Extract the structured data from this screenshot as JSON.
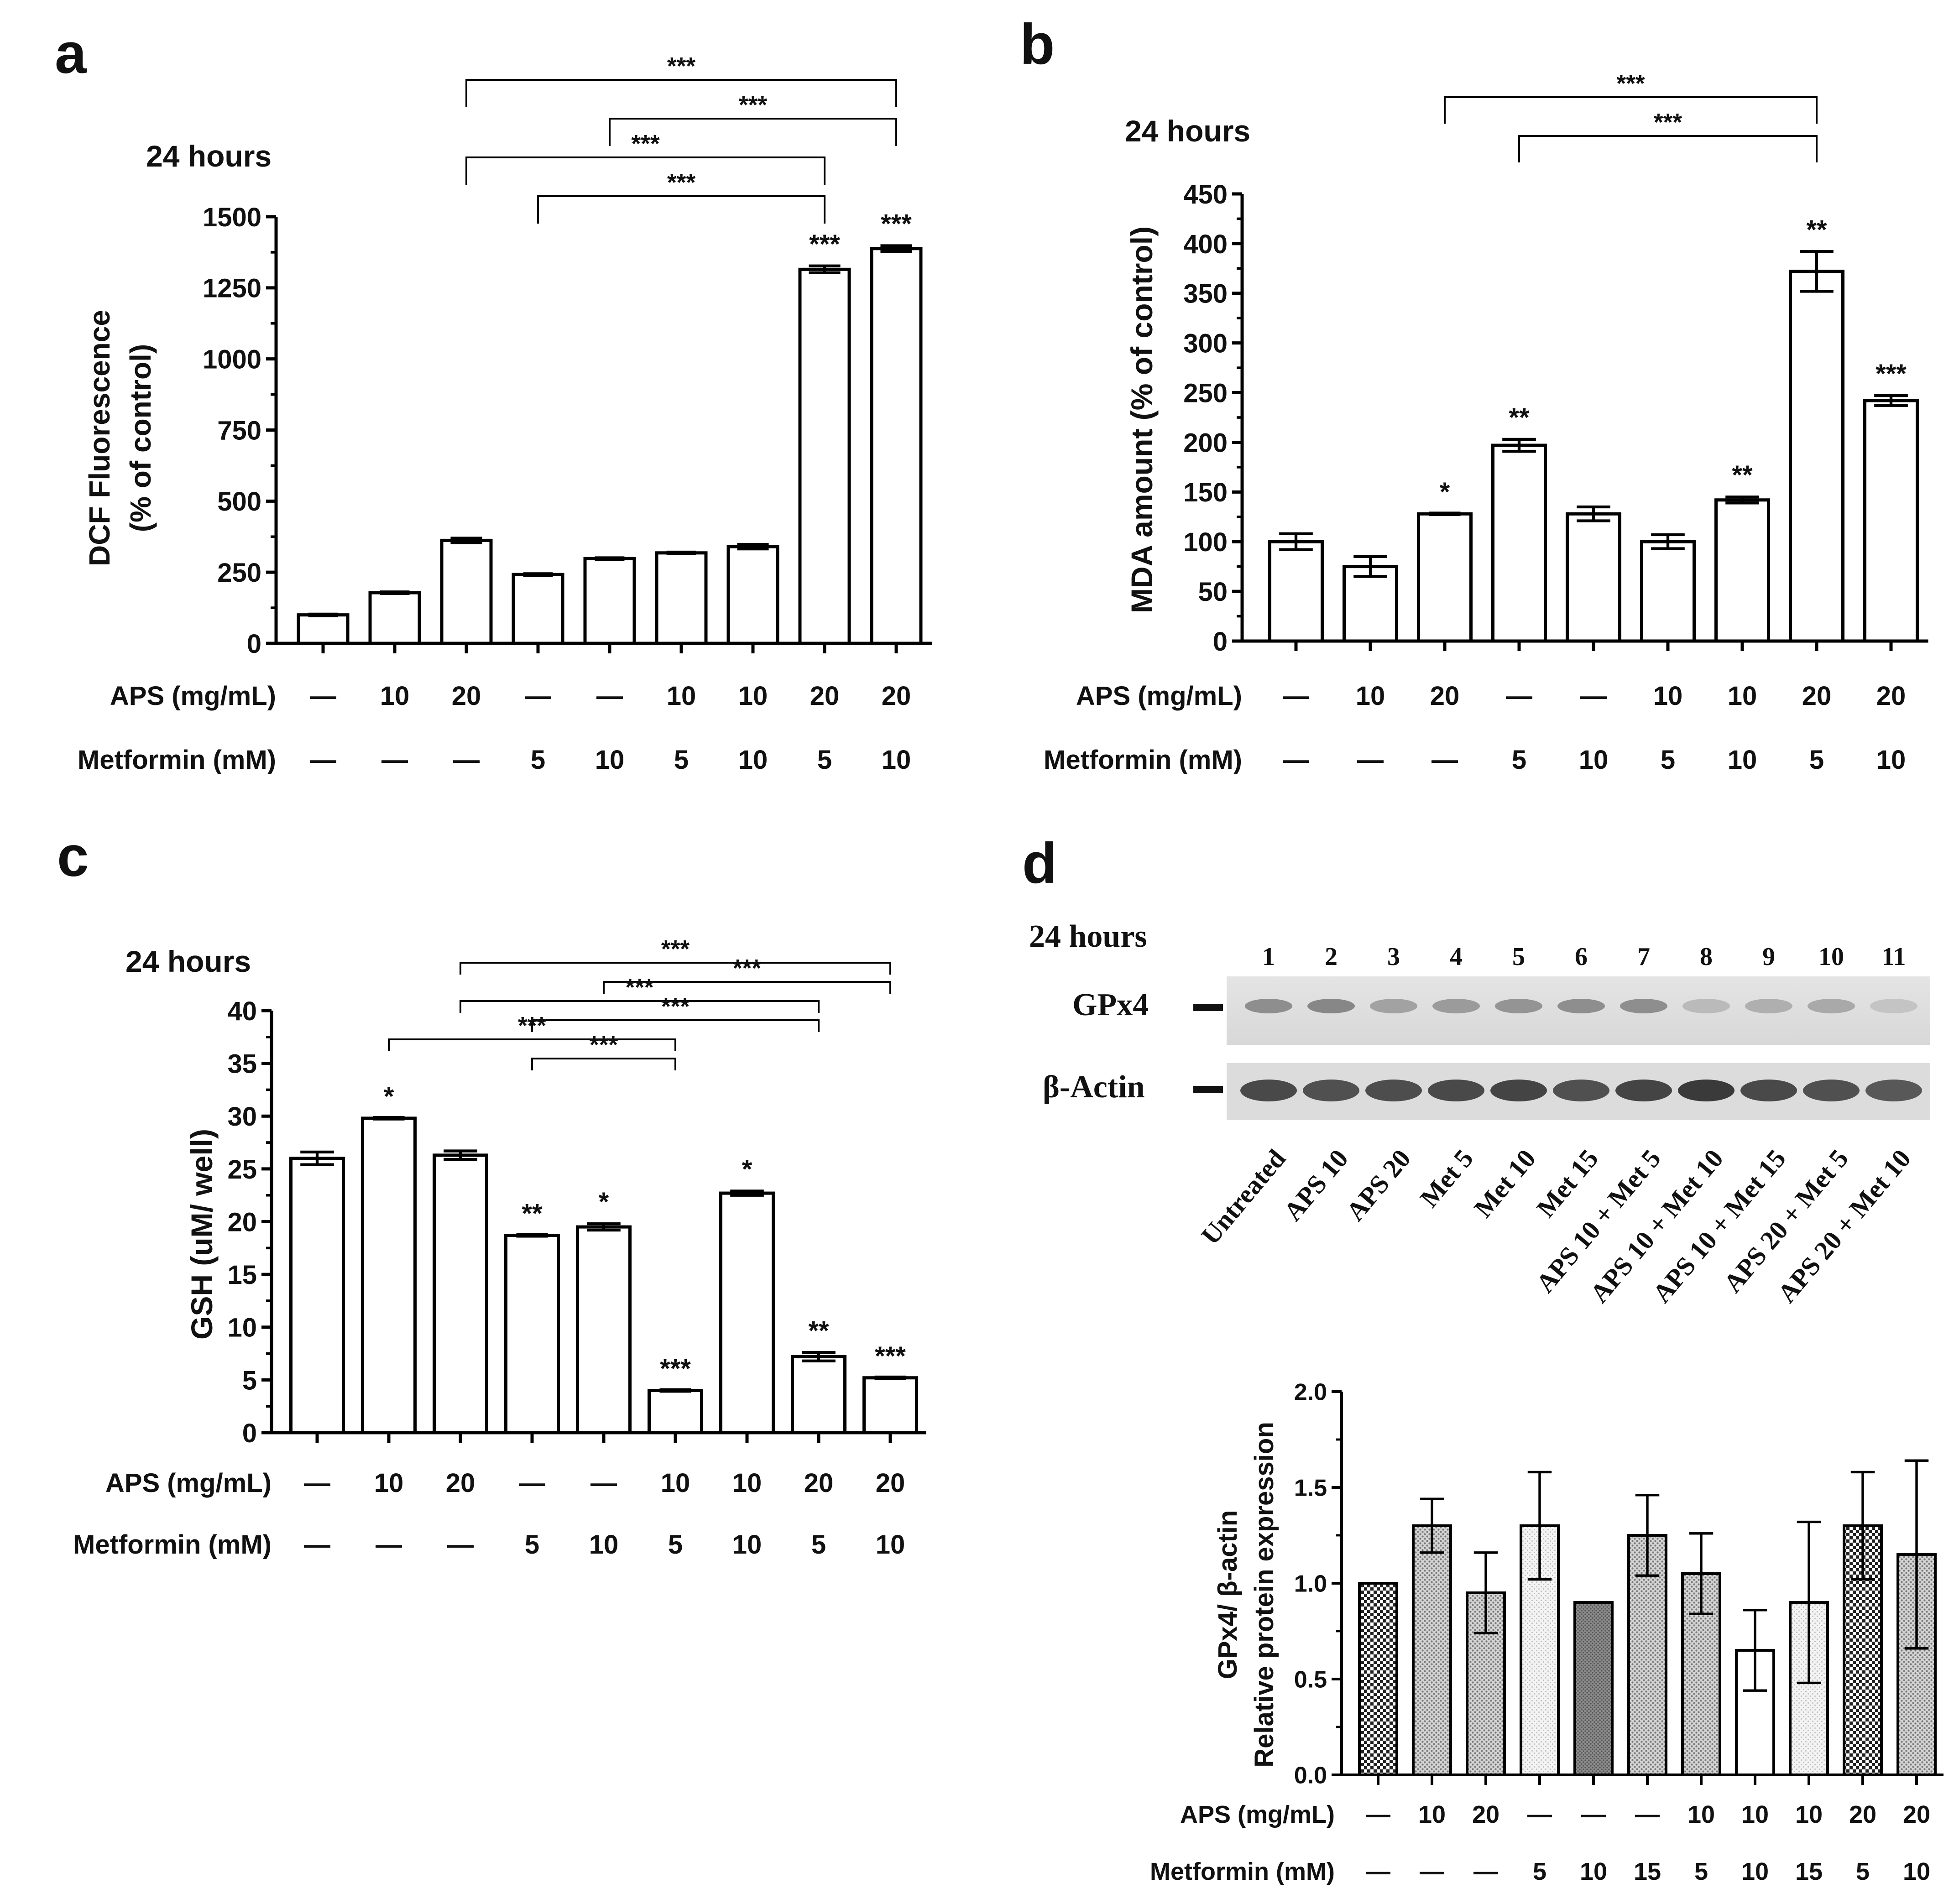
{
  "panels": {
    "a": {
      "letter": "a",
      "time_label": "24 hours",
      "ylabel_line1": "DCF Fluorescence",
      "ylabel_line2": "(% of control)",
      "ylim": [
        0,
        1500
      ],
      "yticks": [
        0,
        250,
        500,
        750,
        1000,
        1250,
        1500
      ],
      "values": [
        100,
        178,
        362,
        242,
        298,
        318,
        340,
        1315,
        1388
      ],
      "errors": [
        0,
        0,
        8,
        0,
        0,
        0,
        8,
        12,
        10
      ],
      "stars": [
        "",
        "",
        "",
        "",
        "",
        "",
        "",
        "***",
        "***"
      ],
      "brackets": [
        {
          "from": 2,
          "to": 8,
          "label": "***",
          "level": 4
        },
        {
          "from": 4,
          "to": 8,
          "label": "***",
          "level": 3
        },
        {
          "from": 2,
          "to": 7,
          "label": "***",
          "level": 2
        },
        {
          "from": 3,
          "to": 7,
          "label": "***",
          "level": 1
        }
      ],
      "aps_label": "APS (mg/mL)",
      "aps": [
        "—",
        "10",
        "20",
        "—",
        "—",
        "10",
        "10",
        "20",
        "20"
      ],
      "met_label": "Metformin (mM)",
      "met": [
        "—",
        "—",
        "—",
        "5",
        "10",
        "5",
        "10",
        "5",
        "10"
      ]
    },
    "b": {
      "letter": "b",
      "time_label": "24 hours",
      "ylabel_line1": "MDA amount (% of control)",
      "ylim": [
        0,
        450
      ],
      "yticks": [
        0,
        50,
        100,
        150,
        200,
        250,
        300,
        350,
        400,
        450
      ],
      "values": [
        100,
        75,
        128,
        197,
        128,
        100,
        142,
        372,
        242
      ],
      "errors": [
        8,
        10,
        0,
        6,
        7,
        7,
        3,
        20,
        5
      ],
      "stars": [
        "",
        "",
        "*",
        "**",
        "",
        "",
        "**",
        "**",
        "***"
      ],
      "brackets": [
        {
          "from": 2,
          "to": 7,
          "label": "***",
          "level": 2
        },
        {
          "from": 3,
          "to": 7,
          "label": "***",
          "level": 1
        }
      ],
      "aps_label": "APS (mg/mL)",
      "aps": [
        "—",
        "10",
        "20",
        "—",
        "—",
        "10",
        "10",
        "20",
        "20"
      ],
      "met_label": "Metformin (mM)",
      "met": [
        "—",
        "—",
        "—",
        "5",
        "10",
        "5",
        "10",
        "5",
        "10"
      ]
    },
    "c": {
      "letter": "c",
      "time_label": "24 hours",
      "ylabel_line1": "GSH (uM/ well)",
      "ylim": [
        0,
        40
      ],
      "yticks": [
        0,
        5,
        10,
        15,
        20,
        25,
        30,
        35,
        40
      ],
      "values": [
        26,
        29.8,
        26.3,
        18.7,
        19.5,
        4.0,
        22.7,
        7.2,
        5.2
      ],
      "errors": [
        0.6,
        0,
        0.4,
        0,
        0.3,
        0,
        0.2,
        0.4,
        0
      ],
      "stars": [
        "",
        "*",
        "",
        "**",
        "*",
        "***",
        "*",
        "**",
        "***"
      ],
      "brackets": [
        {
          "from": 2,
          "to": 8,
          "label": "***",
          "level": 6
        },
        {
          "from": 4,
          "to": 8,
          "label": "***",
          "level": 5
        },
        {
          "from": 2,
          "to": 7,
          "label": "***",
          "level": 4
        },
        {
          "from": 3,
          "to": 7,
          "label": "***",
          "level": 3
        },
        {
          "from": 1,
          "to": 5,
          "label": "***",
          "level": 2
        },
        {
          "from": 3,
          "to": 5,
          "label": "***",
          "level": 1
        }
      ],
      "aps_label": "APS (mg/mL)",
      "aps": [
        "—",
        "10",
        "20",
        "—",
        "—",
        "10",
        "10",
        "20",
        "20"
      ],
      "met_label": "Metformin (mM)",
      "met": [
        "—",
        "—",
        "—",
        "5",
        "10",
        "5",
        "10",
        "5",
        "10"
      ]
    },
    "d": {
      "letter": "d",
      "time_label": "24 hours",
      "lane_numbers": [
        "1",
        "2",
        "3",
        "4",
        "5",
        "6",
        "7",
        "8",
        "9",
        "10",
        "11"
      ],
      "bands": [
        "GPx4",
        "β-Actin"
      ],
      "gpx4_intensity": [
        0.55,
        0.6,
        0.4,
        0.45,
        0.5,
        0.55,
        0.55,
        0.22,
        0.3,
        0.35,
        0.15
      ],
      "actin_intensity": [
        0.85,
        0.8,
        0.82,
        0.85,
        0.88,
        0.8,
        0.88,
        0.95,
        0.85,
        0.8,
        0.75
      ],
      "lane_labels": [
        "Untreated",
        "APS 10",
        "APS 20",
        "Met 5",
        "Met 10",
        "Met 15",
        "APS 10 + Met 5",
        "APS 10 + Met 10",
        "APS 10 + Met 15",
        "APS 20 + Met 5",
        "APS 20 + Met 10"
      ],
      "ylabel_line1": "GPx4/ β-actin",
      "ylabel_line2": "Relative protein expression",
      "ylim": [
        0,
        2.0
      ],
      "yticks": [
        "0.0",
        "0.5",
        "1.0",
        "1.5",
        "2.0"
      ],
      "values": [
        1.0,
        1.3,
        0.95,
        1.3,
        0.9,
        1.25,
        1.05,
        0.65,
        0.9,
        1.3,
        1.15
      ],
      "errors": [
        0,
        0.14,
        0.21,
        0.28,
        0,
        0.21,
        0.21,
        0.21,
        0.42,
        0.28,
        0.49
      ],
      "patterns": [
        "checker",
        "dots",
        "dots",
        "light",
        "dark",
        "dots",
        "dots",
        "blank",
        "light",
        "checker",
        "dots"
      ],
      "aps_label": "APS (mg/mL)",
      "aps": [
        "—",
        "10",
        "20",
        "—",
        "—",
        "—",
        "10",
        "10",
        "10",
        "20",
        "20"
      ],
      "met_label": "Metformin (mM)",
      "met": [
        "—",
        "—",
        "—",
        "5",
        "10",
        "15",
        "5",
        "10",
        "15",
        "5",
        "10"
      ]
    }
  },
  "chart_data": [
    {
      "panel": "a",
      "type": "bar",
      "title": "24 hours",
      "ylabel": "DCF Fluorescence (% of control)",
      "ylim": [
        0,
        1500
      ],
      "categories": [
        "— / —",
        "10 / —",
        "20 / —",
        "— / 5",
        "— / 10",
        "10 / 5",
        "10 / 10",
        "20 / 5",
        "20 / 10"
      ],
      "values": [
        100,
        178,
        362,
        242,
        298,
        318,
        340,
        1315,
        1388
      ]
    },
    {
      "panel": "b",
      "type": "bar",
      "title": "24 hours",
      "ylabel": "MDA amount (% of control)",
      "ylim": [
        0,
        450
      ],
      "categories": [
        "— / —",
        "10 / —",
        "20 / —",
        "— / 5",
        "— / 10",
        "10 / 5",
        "10 / 10",
        "20 / 5",
        "20 / 10"
      ],
      "values": [
        100,
        75,
        128,
        197,
        128,
        100,
        142,
        372,
        242
      ]
    },
    {
      "panel": "c",
      "type": "bar",
      "title": "24 hours",
      "ylabel": "GSH (uM/ well)",
      "ylim": [
        0,
        40
      ],
      "categories": [
        "— / —",
        "10 / —",
        "20 / —",
        "— / 5",
        "— / 10",
        "10 / 5",
        "10 / 10",
        "20 / 5",
        "20 / 10"
      ],
      "values": [
        26,
        29.8,
        26.3,
        18.7,
        19.5,
        4.0,
        22.7,
        7.2,
        5.2
      ]
    },
    {
      "panel": "d",
      "type": "bar",
      "ylabel": "GPx4/ β-actin Relative protein expression",
      "ylim": [
        0,
        2.0
      ],
      "categories": [
        "Untreated",
        "APS 10",
        "APS 20",
        "Met 5",
        "Met 10",
        "Met 15",
        "APS 10 + Met 5",
        "APS 10 + Met 10",
        "APS 10 + Met 15",
        "APS 20 + Met 5",
        "APS 20 + Met 10"
      ],
      "values": [
        1.0,
        1.3,
        0.95,
        1.3,
        0.9,
        1.25,
        1.05,
        0.65,
        0.9,
        1.3,
        1.15
      ]
    }
  ]
}
